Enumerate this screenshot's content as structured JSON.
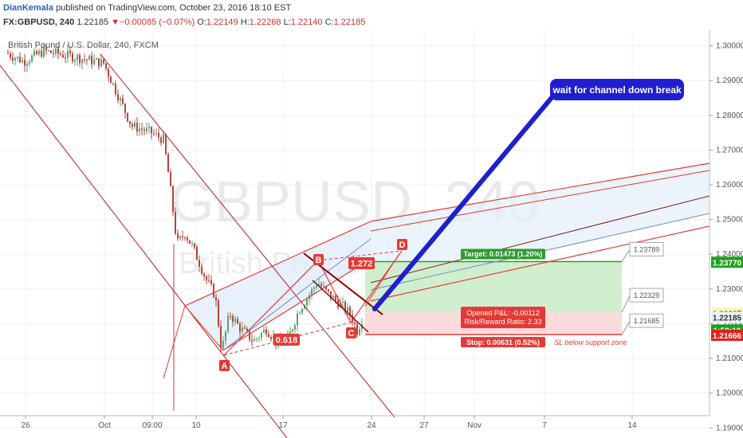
{
  "header": {
    "author": "DianKemala",
    "published_text": "published on TradingView.com, October 23, 2016 18:10 EST",
    "symbol": "FX:GBPUSD, 240",
    "last": "1.22185",
    "change": "−0.00085 (−0.07%)",
    "o_label": "O:",
    "o_value": "1.22149",
    "h_label": "H:",
    "h_value": "1.22268",
    "l_label": "L:",
    "l_value": "1.22140",
    "c_label": "C:",
    "c_value": "1.22185"
  },
  "chart_data": {
    "type": "candlestick",
    "title": "British Pound / U.S. Dollar, 240, FXCM",
    "watermark_symbol": "GBPUSD, 240",
    "watermark_name": "British Pound / U.S. Dollar",
    "ylim": [
      1.1935,
      1.3045
    ],
    "y_ticks": [
      "1.30000",
      "1.29000",
      "1.28000",
      "1.27000",
      "1.26000",
      "1.25000",
      "1.24000",
      "1.23000",
      "1.22000",
      "1.21000",
      "1.20000",
      "1.19000"
    ],
    "x_ticks": [
      "26",
      "Oct",
      "09:00",
      "10",
      "17",
      "24",
      "27",
      "Nov",
      "7",
      "14"
    ],
    "price_tags": [
      {
        "text": "1.23770",
        "color": "#19a319"
      },
      {
        "text": "1.22297",
        "color": "#fff2b0"
      },
      {
        "text": "1.22185",
        "color": "#eaf2fb"
      },
      {
        "text": "1:50:10",
        "color": "#19a319"
      },
      {
        "text": "1.21666",
        "color": "#e02020"
      }
    ],
    "pattern_labels": [
      "A",
      "B",
      "C",
      "D"
    ],
    "fib_labels": [
      "0.618",
      "1.272"
    ],
    "annotation": "wait for channel down break",
    "position": {
      "target": "Target: 0.01473 (1.20%)",
      "pnl": "Opened P&L: -0.00112",
      "rr": "Risk/Reward Ratio: 2.33",
      "stop": "Stop: 0.00631 (0.52%)",
      "sl_note": "SL below support zone",
      "levels": [
        "1.23789",
        "1.22329",
        "1.21685"
      ]
    },
    "colors": {
      "up": "#53a66b",
      "down": "#b7433c",
      "channel": "#e53935",
      "blue": "#1f1fd0",
      "target": "#4caf50",
      "stop": "#f44336"
    },
    "grid": true
  }
}
